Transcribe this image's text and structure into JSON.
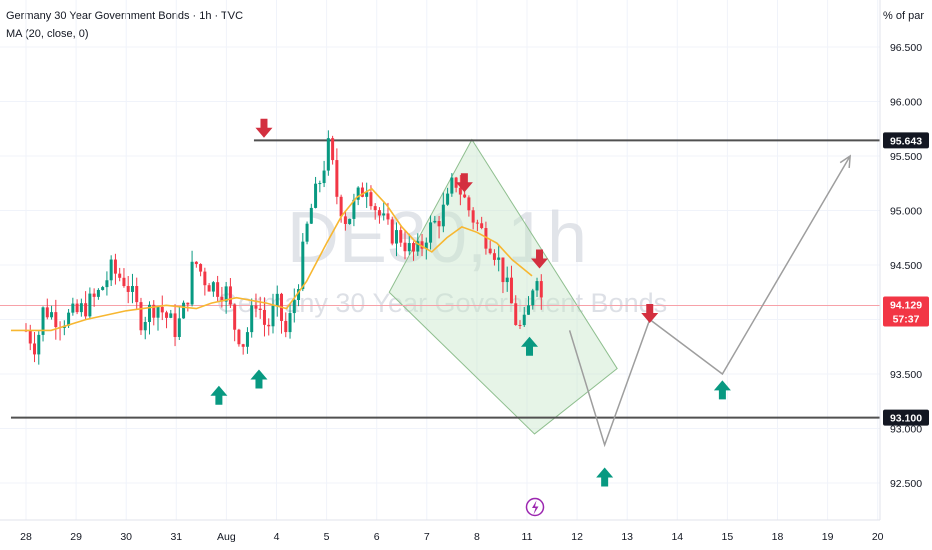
{
  "header": {
    "title": "Germany 30 Year Government Bonds · 1h · TVC",
    "indicator": "MA (20, close, 0)",
    "unit": "% of par"
  },
  "watermark": {
    "symbol": "DE30, 1h",
    "name": "Germany 30 Year Government Bonds"
  },
  "colors": {
    "up": "#089981",
    "down": "#f23645",
    "ma": "#f7b731",
    "level": "#505050",
    "channel_fill": "#c8e6c9",
    "channel_stroke": "#8fbf8f",
    "projection": "#9e9e9e",
    "arrow_up": "#089981",
    "arrow_down": "#d32f3f",
    "price_tag": "#f23645",
    "level_tag": "#131722",
    "flash_icon": "#9c27b0"
  },
  "chart_data": {
    "type": "candlestick",
    "title": "Germany 30 Year Government Bonds · 1h · TVC",
    "ylabel": "% of par",
    "ylim": [
      92.2,
      96.8
    ],
    "y_ticks": [
      "96.500",
      "96.000",
      "95.500",
      "95.000",
      "94.500",
      "94.000",
      "93.500",
      "93.000",
      "92.500"
    ],
    "x_ticks": [
      "28",
      "29",
      "30",
      "31",
      "Aug",
      "4",
      "5",
      "6",
      "7",
      "8",
      "11",
      "12",
      "13",
      "14",
      "15",
      "18",
      "19",
      "20"
    ],
    "x_range_days": [
      -0.3,
      16.9
    ],
    "grid": true,
    "legend": "none",
    "candle_keypoints": [
      [
        0,
        93.9
      ],
      [
        0.2,
        93.75
      ],
      [
        0.35,
        94.1
      ],
      [
        0.7,
        94.0
      ],
      [
        1,
        94.05
      ],
      [
        1.4,
        94.2
      ],
      [
        1.7,
        94.45
      ],
      [
        2,
        94.35
      ],
      [
        2.3,
        94.0
      ],
      [
        2.6,
        94.15
      ],
      [
        3,
        93.9
      ],
      [
        3.2,
        94.15
      ],
      [
        3.35,
        94.55
      ],
      [
        3.6,
        94.35
      ],
      [
        4,
        94.25
      ],
      [
        4.15,
        93.95
      ],
      [
        4.35,
        93.78
      ],
      [
        4.6,
        94.2
      ],
      [
        4.8,
        93.9
      ],
      [
        5,
        94.15
      ],
      [
        5.2,
        93.85
      ],
      [
        5.45,
        94.4
      ],
      [
        5.65,
        94.95
      ],
      [
        5.85,
        95.25
      ],
      [
        6.05,
        95.6
      ],
      [
        6.2,
        95.15
      ],
      [
        6.4,
        94.9
      ],
      [
        6.6,
        95.1
      ],
      [
        6.8,
        95.25
      ],
      [
        7,
        95.0
      ],
      [
        7.25,
        94.8
      ],
      [
        7.5,
        94.75
      ],
      [
        7.7,
        94.6
      ],
      [
        7.85,
        94.62
      ],
      [
        8,
        94.8
      ],
      [
        8.2,
        94.9
      ],
      [
        8.4,
        95.05
      ],
      [
        8.55,
        95.3
      ],
      [
        8.7,
        95.15
      ],
      [
        8.9,
        94.95
      ],
      [
        9.1,
        94.8
      ],
      [
        9.3,
        94.7
      ],
      [
        9.5,
        94.45
      ],
      [
        9.65,
        94.2
      ],
      [
        9.8,
        93.95
      ],
      [
        9.9,
        93.9
      ],
      [
        10,
        94.0
      ],
      [
        10.1,
        94.3
      ],
      [
        10.2,
        94.45
      ],
      [
        10.3,
        94.15
      ]
    ],
    "moving_average": {
      "name": "MA (20, close, 0)",
      "points": [
        [
          -0.3,
          93.9
        ],
        [
          0.5,
          93.9
        ],
        [
          1.2,
          94.0
        ],
        [
          2,
          94.08
        ],
        [
          2.8,
          94.13
        ],
        [
          3.4,
          94.1
        ],
        [
          3.7,
          94.15
        ],
        [
          4.2,
          94.2
        ],
        [
          4.8,
          94.15
        ],
        [
          5.2,
          94.1
        ],
        [
          5.6,
          94.35
        ],
        [
          6.0,
          94.7
        ],
        [
          6.3,
          94.95
        ],
        [
          6.6,
          95.12
        ],
        [
          6.9,
          95.2
        ],
        [
          7.2,
          95.05
        ],
        [
          7.5,
          94.85
        ],
        [
          7.8,
          94.7
        ],
        [
          8.1,
          94.62
        ],
        [
          8.4,
          94.75
        ],
        [
          8.7,
          94.85
        ],
        [
          9.0,
          94.8
        ],
        [
          9.4,
          94.7
        ],
        [
          9.7,
          94.55
        ],
        [
          10.1,
          94.4
        ]
      ]
    },
    "last_price": {
      "value": "94.129",
      "countdown": "57:37",
      "y": 94.129
    },
    "levels": [
      {
        "label": "95.643",
        "y": 95.643,
        "x_start": 4.55
      },
      {
        "label": "93.100",
        "y": 93.1,
        "x_start": -0.3
      }
    ],
    "channel": [
      [
        7.25,
        94.25
      ],
      [
        8.9,
        95.65
      ],
      [
        11.8,
        93.55
      ],
      [
        10.15,
        92.95
      ]
    ],
    "projection": [
      [
        10.85,
        93.9
      ],
      [
        11.55,
        92.85
      ],
      [
        12.45,
        94.0
      ],
      [
        13.9,
        93.5
      ],
      [
        16.45,
        95.5
      ]
    ],
    "arrows_down": [
      [
        4.75,
        95.75
      ],
      [
        8.75,
        95.25
      ],
      [
        10.25,
        94.55
      ],
      [
        12.45,
        94.05
      ]
    ],
    "arrows_up": [
      [
        3.85,
        93.3
      ],
      [
        4.65,
        93.45
      ],
      [
        10.05,
        93.75
      ],
      [
        11.55,
        92.55
      ],
      [
        13.9,
        93.35
      ]
    ]
  }
}
